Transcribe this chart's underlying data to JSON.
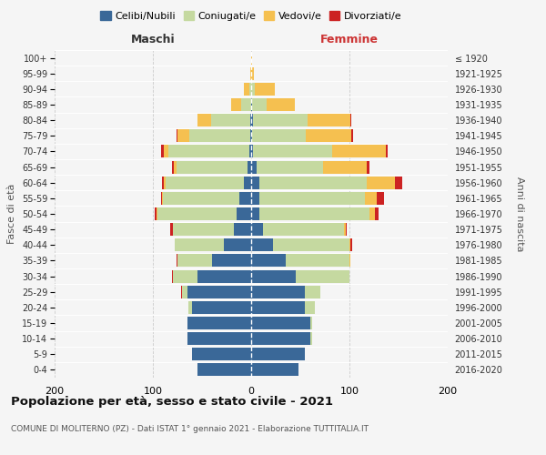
{
  "age_groups": [
    "0-4",
    "5-9",
    "10-14",
    "15-19",
    "20-24",
    "25-29",
    "30-34",
    "35-39",
    "40-44",
    "45-49",
    "50-54",
    "55-59",
    "60-64",
    "65-69",
    "70-74",
    "75-79",
    "80-84",
    "85-89",
    "90-94",
    "95-99",
    "100+"
  ],
  "birth_years": [
    "2016-2020",
    "2011-2015",
    "2006-2010",
    "2001-2005",
    "1996-2000",
    "1991-1995",
    "1986-1990",
    "1981-1985",
    "1976-1980",
    "1971-1975",
    "1966-1970",
    "1961-1965",
    "1956-1960",
    "1951-1955",
    "1946-1950",
    "1941-1945",
    "1936-1940",
    "1931-1935",
    "1926-1930",
    "1921-1925",
    "≤ 1920"
  ],
  "males": {
    "celibi": [
      55,
      60,
      65,
      65,
      60,
      65,
      55,
      40,
      28,
      18,
      15,
      12,
      7,
      4,
      2,
      1,
      1,
      0,
      0,
      0,
      0
    ],
    "coniugati": [
      0,
      0,
      0,
      0,
      4,
      5,
      25,
      35,
      50,
      62,
      80,
      78,
      80,
      72,
      82,
      62,
      40,
      10,
      2,
      0,
      0
    ],
    "vedovi": [
      0,
      0,
      0,
      0,
      0,
      0,
      0,
      0,
      0,
      0,
      1,
      1,
      2,
      3,
      5,
      12,
      14,
      10,
      5,
      1,
      0
    ],
    "divorziati": [
      0,
      0,
      0,
      0,
      0,
      1,
      1,
      1,
      0,
      2,
      2,
      1,
      2,
      2,
      3,
      1,
      0,
      0,
      0,
      0,
      0
    ]
  },
  "females": {
    "nubili": [
      48,
      55,
      60,
      60,
      55,
      55,
      45,
      35,
      22,
      12,
      8,
      8,
      8,
      6,
      2,
      1,
      2,
      1,
      0,
      0,
      0
    ],
    "coniugate": [
      0,
      0,
      2,
      2,
      10,
      15,
      55,
      65,
      78,
      82,
      112,
      108,
      110,
      67,
      80,
      55,
      55,
      15,
      4,
      0,
      0
    ],
    "vedove": [
      0,
      0,
      0,
      0,
      0,
      0,
      0,
      1,
      1,
      2,
      6,
      12,
      28,
      45,
      55,
      46,
      44,
      28,
      20,
      3,
      1
    ],
    "divorziate": [
      0,
      0,
      0,
      0,
      0,
      0,
      0,
      0,
      2,
      1,
      4,
      7,
      8,
      2,
      2,
      2,
      1,
      0,
      0,
      0,
      0
    ]
  },
  "colors": {
    "celibi": "#3a6898",
    "coniugati": "#c5d9a0",
    "vedovi": "#f5c050",
    "divorziati": "#cc2222"
  },
  "legend_labels": [
    "Celibi/Nubili",
    "Coniugati/e",
    "Vedovi/e",
    "Divorziati/e"
  ],
  "title": "Popolazione per età, sesso e stato civile - 2021",
  "subtitle": "COMUNE DI MOLITERNO (PZ) - Dati ISTAT 1° gennaio 2021 - Elaborazione TUTTITALIA.IT",
  "xlabel_left": "Maschi",
  "xlabel_right": "Femmine",
  "ylabel_left": "Fasce di età",
  "ylabel_right": "Anni di nascita",
  "xlim": 200,
  "background_color": "#f5f5f5"
}
